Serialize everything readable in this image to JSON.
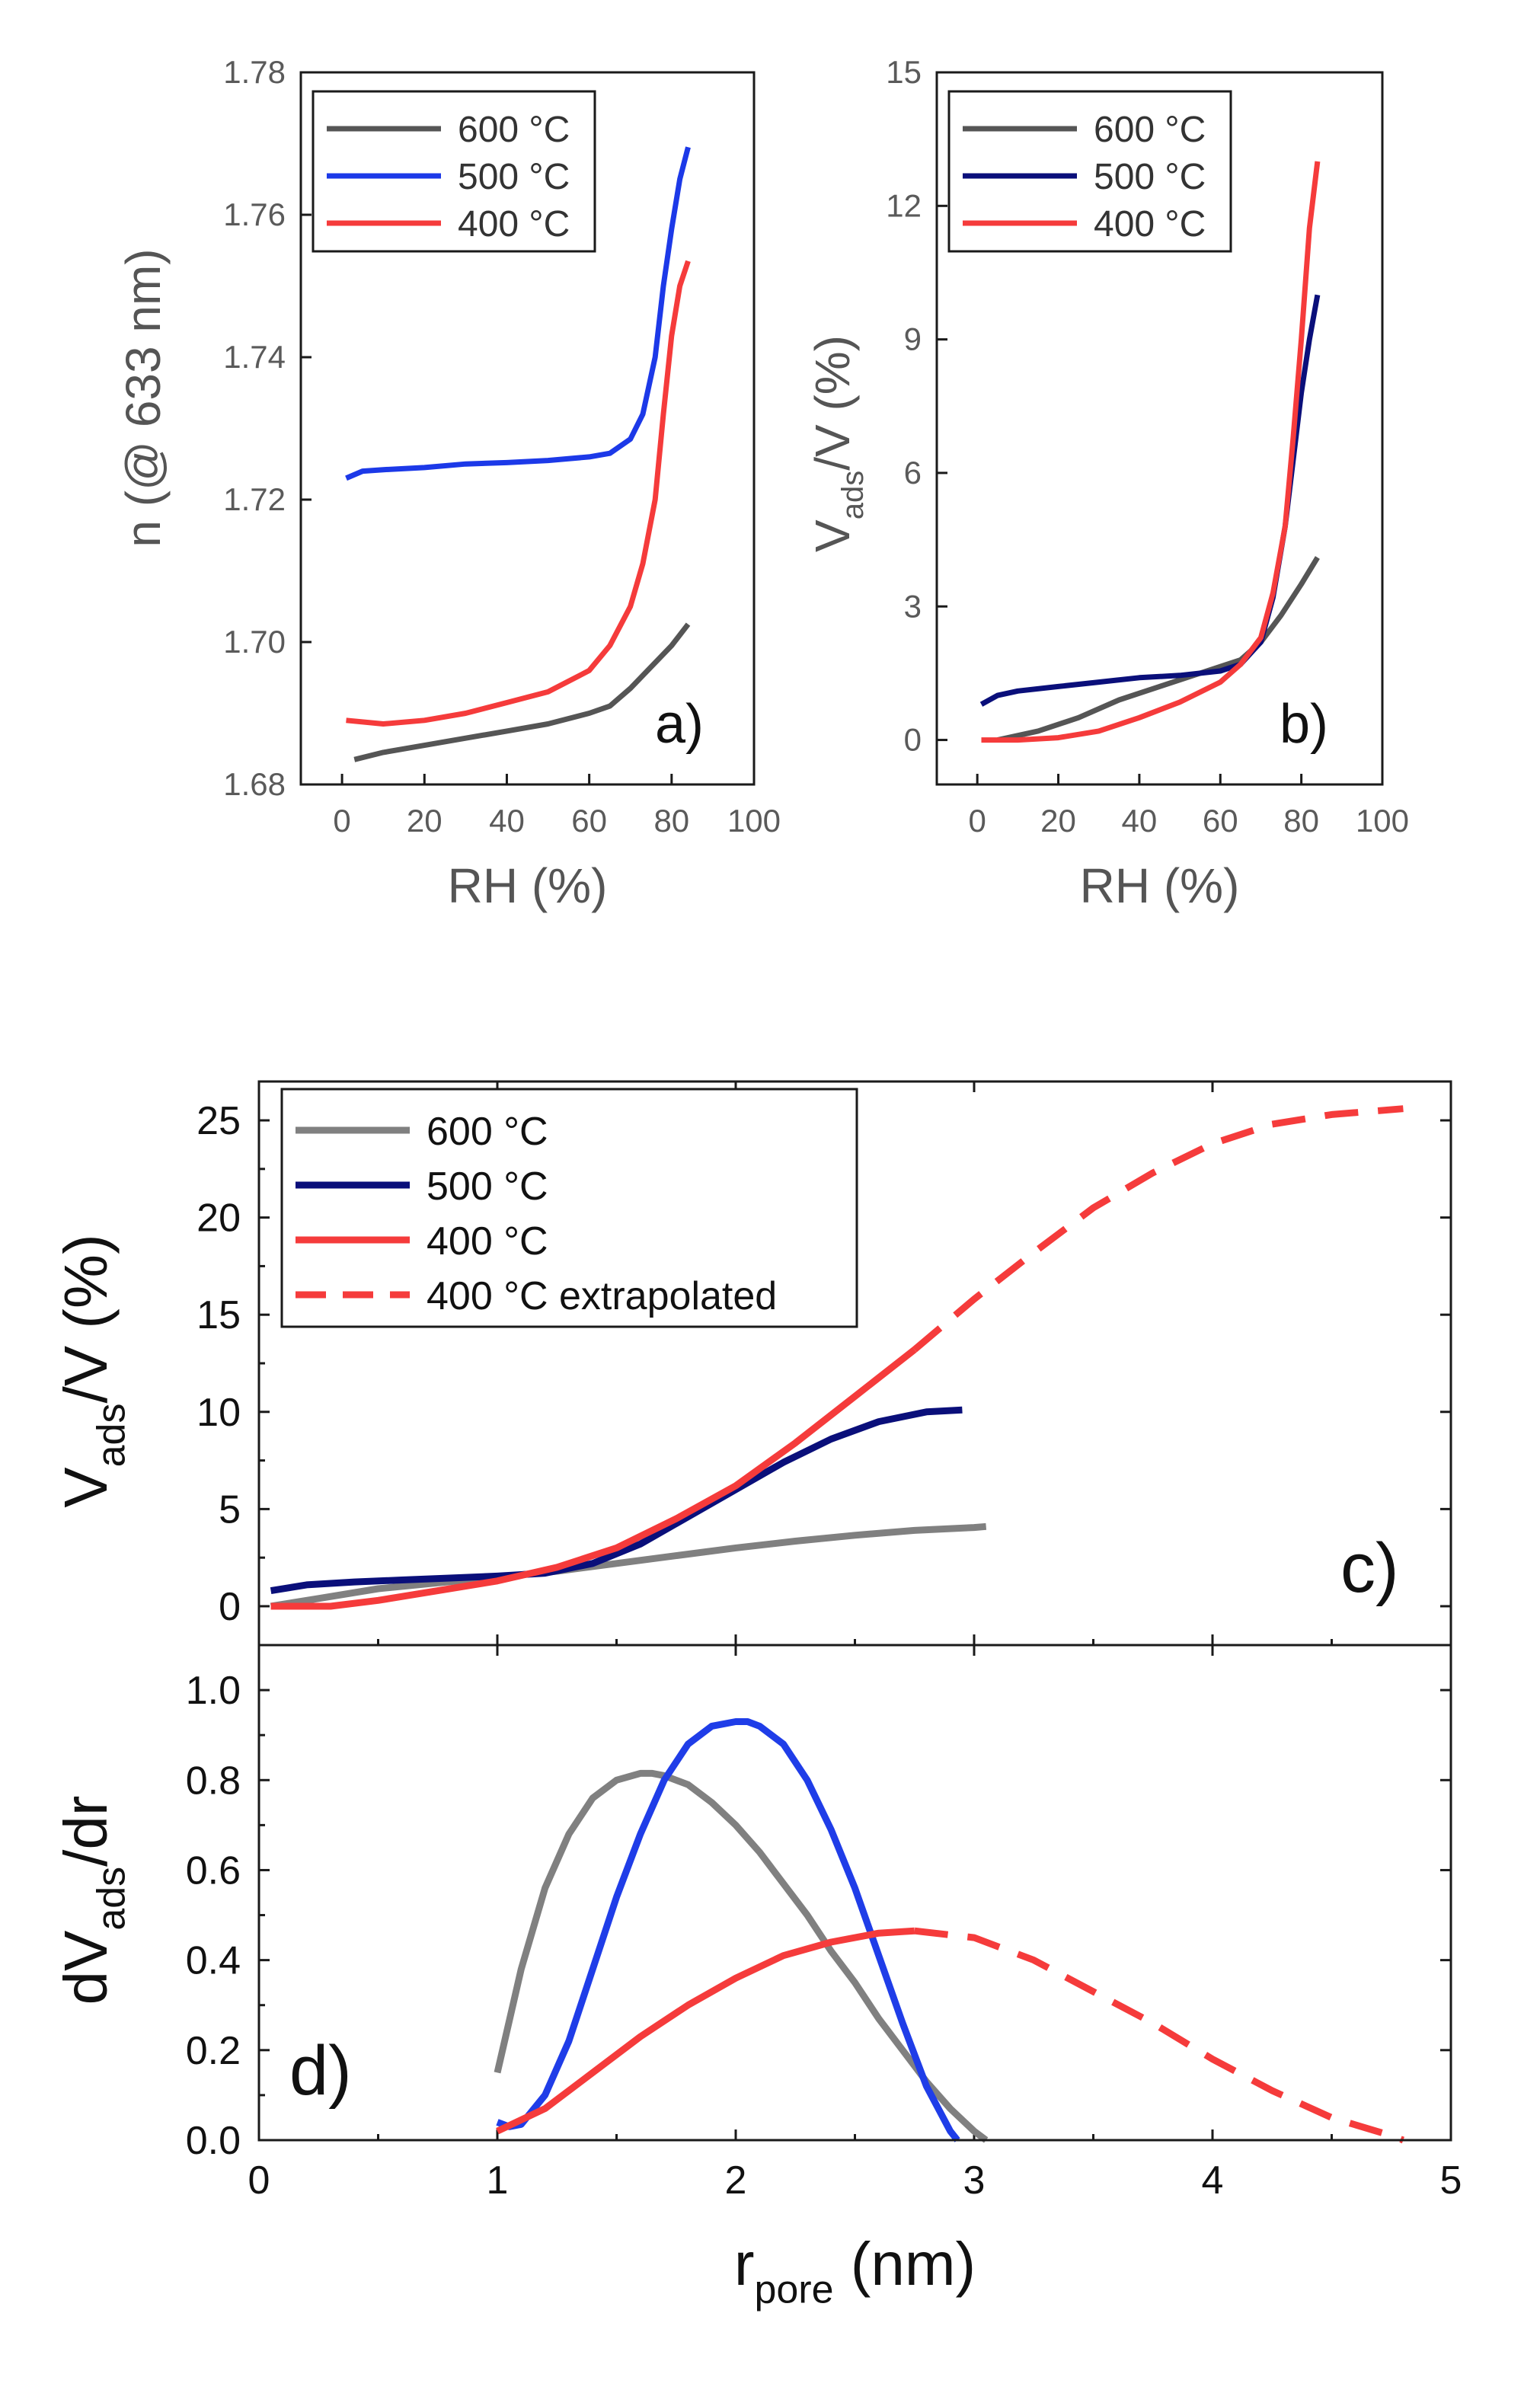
{
  "colors": {
    "600": "#555555",
    "500_ab": "#1c39e8",
    "500_b": "#0a0f7a",
    "500_c": "#0a0f7a",
    "500_d": "#1f3de8",
    "400": "#f53b3b",
    "600_cd": "#808080"
  },
  "chart_data": [
    {
      "id": "a",
      "type": "line",
      "panel_label": "a)",
      "xlabel": "RH (%)",
      "ylabel": "n (@ 633 nm)",
      "xlim": [
        -10,
        100
      ],
      "ylim": [
        1.68,
        1.78
      ],
      "xticks": [
        0,
        20,
        40,
        60,
        80,
        100
      ],
      "xtick_labels": [
        "0",
        "20",
        "40",
        "60",
        "80",
        "100"
      ],
      "yticks": [
        1.68,
        1.7,
        1.72,
        1.74,
        1.76,
        1.78
      ],
      "ytick_labels": [
        "1.68",
        "1.70",
        "1.72",
        "1.74",
        "1.76",
        "1.78"
      ],
      "legend": [
        "600 °C",
        "500 °C",
        "400 °C"
      ],
      "legend_position": "top-left",
      "series": [
        {
          "name": "600 °C",
          "color_key": "600",
          "x": [
            3,
            10,
            20,
            30,
            40,
            50,
            60,
            65,
            70,
            75,
            80,
            84
          ],
          "y": [
            1.6835,
            1.6845,
            1.6855,
            1.6865,
            1.6875,
            1.6885,
            1.69,
            1.691,
            1.6935,
            1.6965,
            1.6995,
            1.7025
          ]
        },
        {
          "name": "500 °C",
          "color_key": "500_ab",
          "x": [
            1,
            5,
            10,
            20,
            30,
            40,
            50,
            60,
            65,
            70,
            73,
            76,
            78,
            80,
            82,
            84
          ],
          "y": [
            1.723,
            1.724,
            1.7242,
            1.7245,
            1.725,
            1.7252,
            1.7255,
            1.726,
            1.7265,
            1.7285,
            1.732,
            1.74,
            1.75,
            1.758,
            1.765,
            1.7695
          ]
        },
        {
          "name": "400 °C",
          "color_key": "400",
          "x": [
            1,
            10,
            20,
            30,
            40,
            50,
            60,
            65,
            70,
            73,
            76,
            78,
            80,
            82,
            84
          ],
          "y": [
            1.689,
            1.6885,
            1.689,
            1.69,
            1.6915,
            1.693,
            1.696,
            1.6995,
            1.705,
            1.711,
            1.72,
            1.732,
            1.743,
            1.75,
            1.7535
          ]
        }
      ]
    },
    {
      "id": "b",
      "type": "line",
      "panel_label": "b)",
      "xlabel": "RH (%)",
      "ylabel": "Vads/V (%)",
      "ylabel_parts": {
        "main": "V",
        "sub": "ads",
        "rest": "/V (%)"
      },
      "xlim": [
        -10,
        100
      ],
      "ylim": [
        -1,
        15
      ],
      "xticks": [
        0,
        20,
        40,
        60,
        80,
        100
      ],
      "xtick_labels": [
        "0",
        "20",
        "40",
        "60",
        "80",
        "100"
      ],
      "yticks": [
        0,
        3,
        6,
        9,
        12,
        15
      ],
      "ytick_labels": [
        "0",
        "3",
        "6",
        "9",
        "12",
        "15"
      ],
      "legend": [
        "600 °C",
        "500 °C",
        "400 °C"
      ],
      "legend_position": "top-left",
      "series": [
        {
          "name": "600 °C",
          "color_key": "600",
          "x": [
            5,
            15,
            25,
            35,
            45,
            55,
            65,
            70,
            75,
            80,
            84
          ],
          "y": [
            0.0,
            0.2,
            0.5,
            0.9,
            1.2,
            1.5,
            1.8,
            2.2,
            2.8,
            3.5,
            4.1
          ]
        },
        {
          "name": "500 °C",
          "color_key": "500_b",
          "x": [
            1,
            5,
            10,
            20,
            30,
            40,
            50,
            60,
            65,
            70,
            73,
            76,
            78,
            80,
            82,
            84
          ],
          "y": [
            0.8,
            1.0,
            1.1,
            1.2,
            1.3,
            1.4,
            1.45,
            1.55,
            1.7,
            2.2,
            3.2,
            4.8,
            6.3,
            7.8,
            9.0,
            10.0
          ]
        },
        {
          "name": "400 °C",
          "color_key": "400",
          "x": [
            1,
            10,
            20,
            30,
            40,
            50,
            60,
            65,
            70,
            73,
            76,
            78,
            80,
            82,
            84
          ],
          "y": [
            0.0,
            0.0,
            0.05,
            0.2,
            0.5,
            0.85,
            1.3,
            1.7,
            2.3,
            3.3,
            4.8,
            6.8,
            9.0,
            11.5,
            13.0
          ]
        }
      ]
    },
    {
      "id": "c",
      "type": "line",
      "panel_label": "c)",
      "xlabel": "",
      "ylabel": "Vads/V (%)",
      "ylabel_parts": {
        "main": "V",
        "sub": "ads",
        "rest": "/V (%)"
      },
      "xlim": [
        0,
        5
      ],
      "ylim": [
        -2,
        27
      ],
      "xticks": [
        0,
        1,
        2,
        3,
        4,
        5
      ],
      "yticks": [
        0,
        5,
        10,
        15,
        20,
        25
      ],
      "ytick_labels": [
        "0",
        "5",
        "10",
        "15",
        "20",
        "25"
      ],
      "legend": [
        "600 °C",
        "500 °C",
        "400 °C",
        "400 °C extrapolated"
      ],
      "legend_position": "top-left",
      "series": [
        {
          "name": "600 °C",
          "color_key": "600_cd",
          "x": [
            0.05,
            0.25,
            0.5,
            0.75,
            1.0,
            1.25,
            1.5,
            1.75,
            2.0,
            2.25,
            2.5,
            2.75,
            3.0,
            3.05
          ],
          "y": [
            0.0,
            0.4,
            0.9,
            1.2,
            1.5,
            1.8,
            2.2,
            2.6,
            3.0,
            3.35,
            3.65,
            3.9,
            4.05,
            4.1
          ]
        },
        {
          "name": "500 °C",
          "color_key": "500_c",
          "x": [
            0.05,
            0.2,
            0.4,
            0.6,
            0.8,
            1.0,
            1.2,
            1.4,
            1.6,
            1.8,
            2.0,
            2.2,
            2.4,
            2.6,
            2.8,
            2.95
          ],
          "y": [
            0.8,
            1.1,
            1.25,
            1.35,
            1.45,
            1.55,
            1.7,
            2.2,
            3.2,
            4.6,
            6.0,
            7.4,
            8.6,
            9.5,
            10.0,
            10.1
          ]
        },
        {
          "name": "400 °C",
          "color_key": "400",
          "x": [
            0.05,
            0.3,
            0.5,
            0.75,
            1.0,
            1.25,
            1.5,
            1.75,
            2.0,
            2.25,
            2.5,
            2.75
          ],
          "y": [
            0.0,
            0.0,
            0.3,
            0.8,
            1.3,
            2.0,
            3.0,
            4.5,
            6.2,
            8.4,
            10.8,
            13.2
          ]
        },
        {
          "name": "400 °C extrapolated",
          "color_key": "400",
          "dashed": true,
          "x": [
            2.75,
            3.0,
            3.25,
            3.5,
            3.75,
            4.0,
            4.25,
            4.5,
            4.8
          ],
          "y": [
            13.2,
            15.8,
            18.2,
            20.5,
            22.3,
            23.8,
            24.8,
            25.3,
            25.6
          ]
        }
      ]
    },
    {
      "id": "d",
      "type": "line",
      "panel_label": "d)",
      "xlabel": "rpore (nm)",
      "xlabel_parts": {
        "main": "r",
        "sub": "pore",
        "rest": " (nm)"
      },
      "ylabel": "dVads/dr",
      "ylabel_parts": {
        "main": "dV",
        "sub": "ads",
        "rest": "/dr"
      },
      "xlim": [
        0,
        5
      ],
      "ylim": [
        0,
        1.1
      ],
      "xticks": [
        0,
        1,
        2,
        3,
        4,
        5
      ],
      "xtick_labels": [
        "0",
        "1",
        "2",
        "3",
        "4",
        "5"
      ],
      "yticks": [
        0.0,
        0.2,
        0.4,
        0.6,
        0.8,
        1.0
      ],
      "ytick_labels": [
        "0.0",
        "0.2",
        "0.4",
        "0.6",
        "0.8",
        "1.0"
      ],
      "series": [
        {
          "name": "600 °C",
          "color_key": "600_cd",
          "x": [
            1.0,
            1.1,
            1.2,
            1.3,
            1.4,
            1.5,
            1.6,
            1.65,
            1.7,
            1.8,
            1.9,
            2.0,
            2.1,
            2.2,
            2.3,
            2.4,
            2.5,
            2.6,
            2.7,
            2.8,
            2.9,
            3.0,
            3.05
          ],
          "y": [
            0.15,
            0.38,
            0.56,
            0.68,
            0.76,
            0.8,
            0.815,
            0.815,
            0.81,
            0.79,
            0.75,
            0.7,
            0.64,
            0.57,
            0.5,
            0.42,
            0.35,
            0.27,
            0.2,
            0.13,
            0.07,
            0.02,
            0.0
          ]
        },
        {
          "name": "500 °C",
          "color_key": "500_d",
          "x": [
            1.0,
            1.05,
            1.1,
            1.2,
            1.3,
            1.4,
            1.5,
            1.6,
            1.7,
            1.8,
            1.9,
            2.0,
            2.05,
            2.1,
            2.2,
            2.3,
            2.4,
            2.5,
            2.6,
            2.7,
            2.8,
            2.9,
            2.93
          ],
          "y": [
            0.04,
            0.03,
            0.035,
            0.1,
            0.22,
            0.38,
            0.54,
            0.68,
            0.8,
            0.88,
            0.92,
            0.93,
            0.93,
            0.92,
            0.88,
            0.8,
            0.69,
            0.56,
            0.41,
            0.26,
            0.12,
            0.02,
            0.0
          ]
        },
        {
          "name": "400 °C",
          "color_key": "400",
          "x": [
            1.0,
            1.2,
            1.4,
            1.6,
            1.8,
            2.0,
            2.2,
            2.4,
            2.6,
            2.75
          ],
          "y": [
            0.02,
            0.07,
            0.15,
            0.23,
            0.3,
            0.36,
            0.41,
            0.44,
            0.46,
            0.465
          ]
        },
        {
          "name": "400 °C extrapolated",
          "color_key": "400",
          "dashed": true,
          "x": [
            2.75,
            3.0,
            3.25,
            3.5,
            3.75,
            4.0,
            4.25,
            4.5,
            4.75,
            4.8
          ],
          "y": [
            0.465,
            0.45,
            0.4,
            0.33,
            0.26,
            0.18,
            0.11,
            0.05,
            0.01,
            0.0
          ]
        }
      ]
    }
  ]
}
